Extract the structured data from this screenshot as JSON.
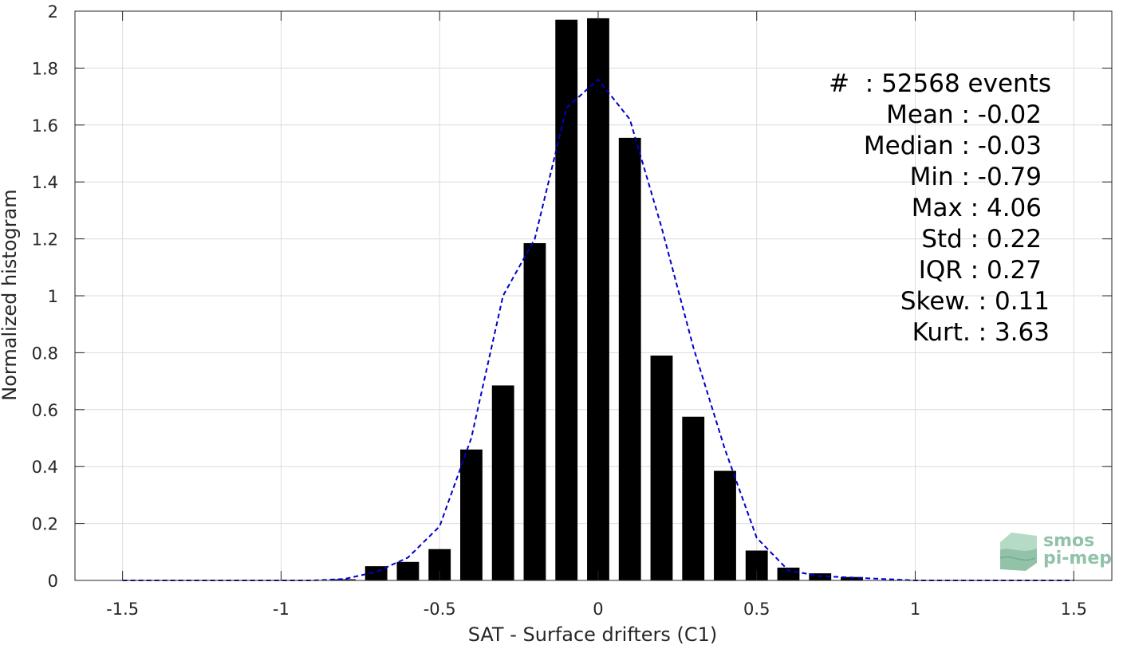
{
  "chart_data": {
    "type": "bar",
    "xlabel": "SAT - Surface drifters (C1)",
    "ylabel": "Normalized histogram",
    "xlim": [
      -1.65,
      1.62
    ],
    "ylim": [
      0,
      2
    ],
    "xticks": [
      -1.5,
      -1,
      -0.5,
      0,
      0.5,
      1,
      1.5
    ],
    "xtick_labels": [
      "-1.5",
      "-1",
      "-0.5",
      "0",
      "0.5",
      "1",
      "1.5"
    ],
    "yticks": [
      0,
      0.2,
      0.4,
      0.6,
      0.8,
      1,
      1.2,
      1.4,
      1.6,
      1.8,
      2
    ],
    "ytick_labels": [
      "0",
      "0.2",
      "0.4",
      "0.6",
      "0.8",
      "1",
      "1.2",
      "1.4",
      "1.6",
      "1.8",
      "2"
    ],
    "grid": true,
    "bar_color": "#000000",
    "bar_width": 0.07,
    "bars": {
      "x": [
        -0.8,
        -0.7,
        -0.6,
        -0.5,
        -0.4,
        -0.3,
        -0.2,
        -0.1,
        0.0,
        0.1,
        0.2,
        0.3,
        0.4,
        0.5,
        0.6,
        0.7,
        0.8
      ],
      "values": [
        0.004,
        0.05,
        0.065,
        0.11,
        0.46,
        0.685,
        1.185,
        1.97,
        1.975,
        1.555,
        0.79,
        0.575,
        0.385,
        0.105,
        0.045,
        0.025,
        0.012
      ]
    },
    "fit_curve": {
      "style": "dashed",
      "color": "#0000cc",
      "x": [
        -1.5,
        -1.4,
        -1.3,
        -1.2,
        -1.1,
        -1.0,
        -0.9,
        -0.8,
        -0.7,
        -0.6,
        -0.5,
        -0.4,
        -0.3,
        -0.2,
        -0.1,
        0.0,
        0.1,
        0.2,
        0.3,
        0.4,
        0.5,
        0.6,
        0.7,
        0.8,
        0.9,
        1.0,
        1.1,
        1.2,
        1.3,
        1.4,
        1.5
      ],
      "y": [
        0,
        0,
        0,
        0,
        0,
        0,
        0,
        0.005,
        0.03,
        0.08,
        0.19,
        0.5,
        1.0,
        1.2,
        1.66,
        1.76,
        1.62,
        1.24,
        0.82,
        0.46,
        0.15,
        0.035,
        0.015,
        0.01,
        0.005,
        0,
        0,
        0,
        0,
        0,
        0
      ]
    }
  },
  "stats": {
    "events": "#  : 52568 events",
    "mean": "Mean : -0.02",
    "median": "Median : -0.03",
    "min": "Min : -0.79",
    "max": "Max : 4.06",
    "std": "Std : 0.22",
    "iqr": "IQR : 0.27",
    "skew": "Skew. : 0.11",
    "kurt": "Kurt. : 3.63"
  },
  "logo": {
    "line1": "smos",
    "line2": "pi-mep",
    "color": "#7fb89a"
  }
}
